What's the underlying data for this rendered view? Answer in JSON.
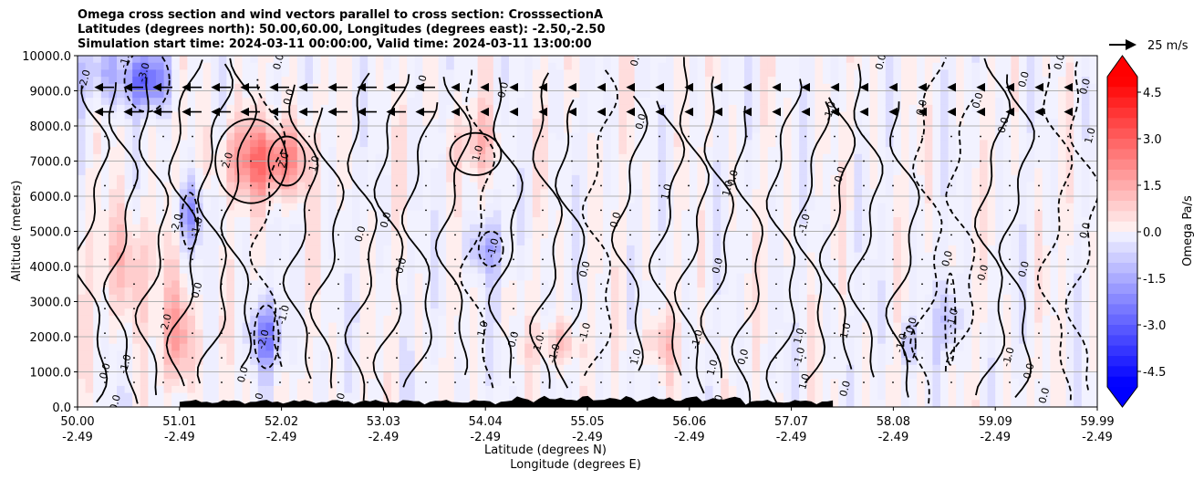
{
  "title_lines": [
    "Omega cross section and wind vectors parallel to cross section: CrosssectionA",
    "Latitudes (degrees north): 50.00,60.00, Longitudes (degrees east): -2.50,-2.50",
    "Simulation start time: 2024-03-11 00:00:00, Valid time: 2024-03-11 13:00:00"
  ],
  "chart_data": {
    "type": "heatmap",
    "title": "Omega cross section and wind vectors parallel to cross section: CrosssectionA",
    "ylabel": "Altitude (meters)",
    "xlabel_lines": [
      "Latitude (degrees N)",
      "Longitude (degrees E)"
    ],
    "ylim": [
      0,
      10000
    ],
    "y_ticks": [
      "0.0",
      "1000.0",
      "2000.0",
      "3000.0",
      "4000.0",
      "5000.0",
      "6000.0",
      "7000.0",
      "8000.0",
      "9000.0",
      "10000.0"
    ],
    "x_ticks": [
      {
        "lat": "50.00",
        "lon": "-2.49"
      },
      {
        "lat": "51.01",
        "lon": "-2.49"
      },
      {
        "lat": "52.02",
        "lon": "-2.49"
      },
      {
        "lat": "53.03",
        "lon": "-2.49"
      },
      {
        "lat": "54.04",
        "lon": "-2.49"
      },
      {
        "lat": "55.05",
        "lon": "-2.49"
      },
      {
        "lat": "56.06",
        "lon": "-2.49"
      },
      {
        "lat": "57.07",
        "lon": "-2.49"
      },
      {
        "lat": "58.08",
        "lon": "-2.49"
      },
      {
        "lat": "59.09",
        "lon": "-2.49"
      },
      {
        "lat": "59.99",
        "lon": "-2.49"
      }
    ],
    "colorbar": {
      "label": "Omega Pa/s",
      "range": [
        -5,
        5
      ],
      "ticks": [
        "-4.5",
        "-3.0",
        "-1.5",
        "0.0",
        "1.5",
        "3.0",
        "4.5"
      ],
      "min_color": "#0000ff",
      "max_color": "#ff0000",
      "mid_color": "#ffffff"
    },
    "vector_key": "25 m/s",
    "contour_labels": [
      {
        "t": "-3.0",
        "lat": 50.68,
        "alt": 9500
      },
      {
        "t": "-1.0",
        "lat": 50.5,
        "alt": 9900
      },
      {
        "t": "-2.0",
        "lat": 50.1,
        "alt": 9300
      },
      {
        "t": "2.0",
        "lat": 51.5,
        "alt": 7000
      },
      {
        "t": "2.0",
        "lat": 52.05,
        "alt": 7000
      },
      {
        "t": "1.0",
        "lat": 52.35,
        "alt": 6900
      },
      {
        "t": "-2.0",
        "lat": 51.0,
        "alt": 5200
      },
      {
        "t": "-1.0",
        "lat": 51.2,
        "alt": 5100
      },
      {
        "t": "0.0",
        "lat": 51.2,
        "alt": 3300
      },
      {
        "t": "2.0",
        "lat": 50.9,
        "alt": 2400
      },
      {
        "t": "-2.0",
        "lat": 51.85,
        "alt": 1900
      },
      {
        "t": "-1.0",
        "lat": 52.05,
        "alt": 2600
      },
      {
        "t": "-1.0",
        "lat": 50.5,
        "alt": 1200
      },
      {
        "t": "0.0",
        "lat": 50.3,
        "alt": 1000
      },
      {
        "t": "0.0",
        "lat": 50.4,
        "alt": 100
      },
      {
        "t": "0.0",
        "lat": 52.1,
        "alt": 8800
      },
      {
        "t": "0.0",
        "lat": 53.4,
        "alt": 9200
      },
      {
        "t": "1.0",
        "lat": 53.95,
        "alt": 7200
      },
      {
        "t": "0.0",
        "lat": 53.05,
        "alt": 5300
      },
      {
        "t": "0.0",
        "lat": 52.8,
        "alt": 4900
      },
      {
        "t": "0.0",
        "lat": 53.2,
        "alt": 4000
      },
      {
        "t": "-1.0",
        "lat": 54.1,
        "alt": 4500
      },
      {
        "t": "0.0",
        "lat": 54.2,
        "alt": 9000
      },
      {
        "t": "0.0",
        "lat": 55.3,
        "alt": 5300
      },
      {
        "t": "0.0",
        "lat": 55.0,
        "alt": 3900
      },
      {
        "t": "1.0",
        "lat": 55.8,
        "alt": 6100
      },
      {
        "t": "0.0",
        "lat": 55.55,
        "alt": 8100
      },
      {
        "t": "1.0",
        "lat": 54.0,
        "alt": 2200
      },
      {
        "t": "0.0",
        "lat": 54.3,
        "alt": 1900
      },
      {
        "t": "1.0",
        "lat": 54.55,
        "alt": 1800
      },
      {
        "t": "-1.0",
        "lat": 54.7,
        "alt": 1500
      },
      {
        "t": "-1.0",
        "lat": 55.0,
        "alt": 2100
      },
      {
        "t": "1.0",
        "lat": 55.5,
        "alt": 1400
      },
      {
        "t": "-1.0",
        "lat": 56.1,
        "alt": 1900
      },
      {
        "t": "0.0",
        "lat": 56.3,
        "alt": 4000
      },
      {
        "t": "0.0",
        "lat": 56.45,
        "alt": 6500
      },
      {
        "t": "1.0",
        "lat": 56.4,
        "alt": 6200
      },
      {
        "t": "1.0",
        "lat": 56.25,
        "alt": 1100
      },
      {
        "t": "0.0",
        "lat": 56.55,
        "alt": 1400
      },
      {
        "t": "0.0",
        "lat": 56.3,
        "alt": 100
      },
      {
        "t": "-1.0",
        "lat": 57.15,
        "alt": 5200
      },
      {
        "t": "0.0",
        "lat": 57.5,
        "alt": 6600
      },
      {
        "t": "-1.0",
        "lat": 57.4,
        "alt": 8400
      },
      {
        "t": "1.0",
        "lat": 57.1,
        "alt": 2000
      },
      {
        "t": "-1.0",
        "lat": 57.1,
        "alt": 1400
      },
      {
        "t": "-1.0",
        "lat": 57.55,
        "alt": 2100
      },
      {
        "t": "1.0",
        "lat": 57.15,
        "alt": 700
      },
      {
        "t": "0.0",
        "lat": 57.55,
        "alt": 500
      },
      {
        "t": "0.0",
        "lat": 58.3,
        "alt": 8500
      },
      {
        "t": "0.0",
        "lat": 58.55,
        "alt": 4200
      },
      {
        "t": "0.0",
        "lat": 58.2,
        "alt": 2300
      },
      {
        "t": "-1.0",
        "lat": 58.1,
        "alt": 1800
      },
      {
        "t": "-1.0",
        "lat": 58.6,
        "alt": 2500
      },
      {
        "t": "0.0",
        "lat": 58.9,
        "alt": 3800
      },
      {
        "t": "0.0",
        "lat": 58.85,
        "alt": 8700
      },
      {
        "t": "0.0",
        "lat": 59.1,
        "alt": 8000
      },
      {
        "t": "0.0",
        "lat": 59.3,
        "alt": 9300
      },
      {
        "t": "0.0",
        "lat": 59.3,
        "alt": 3900
      },
      {
        "t": "0.0",
        "lat": 59.35,
        "alt": 1000
      },
      {
        "t": "-1.0",
        "lat": 59.15,
        "alt": 1400
      },
      {
        "t": "0.0",
        "lat": 59.5,
        "alt": 300
      },
      {
        "t": "0.0",
        "lat": 59.9,
        "alt": 9100
      },
      {
        "t": "0.0",
        "lat": 59.9,
        "alt": 5000
      },
      {
        "t": "1.0",
        "lat": 59.95,
        "alt": 7700
      },
      {
        "t": "0.0",
        "lat": 59.65,
        "alt": 9800
      },
      {
        "t": "0.0",
        "lat": 57.9,
        "alt": 9800
      },
      {
        "t": "0.0",
        "lat": 55.5,
        "alt": 9900
      },
      {
        "t": "0.0",
        "lat": 52.0,
        "alt": 9800
      },
      {
        "t": "0.0",
        "lat": 51.8,
        "alt": 150
      },
      {
        "t": "0.0",
        "lat": 52.6,
        "alt": 150
      },
      {
        "t": "0.0",
        "lat": 51.65,
        "alt": 900
      }
    ]
  }
}
